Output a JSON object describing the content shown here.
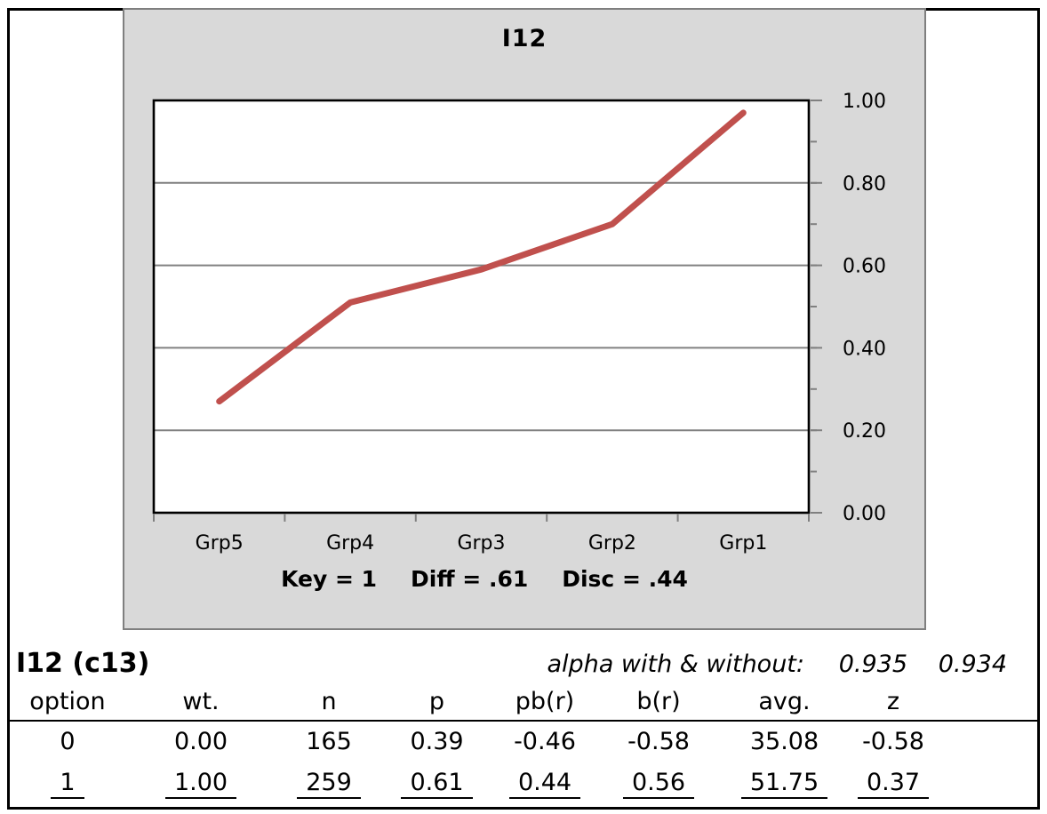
{
  "chart": {
    "title": "I12",
    "key_info": [
      "Key = 1",
      "Diff = .61",
      "Disc = .44"
    ]
  },
  "chart_data": {
    "type": "line",
    "title": "I12",
    "categories": [
      "Grp5",
      "Grp4",
      "Grp3",
      "Grp2",
      "Grp1"
    ],
    "values": [
      0.27,
      0.51,
      0.59,
      0.7,
      0.97
    ],
    "xlabel": "",
    "ylabel": "",
    "ylim": [
      0,
      1
    ],
    "y_axis_side": "right",
    "y_ticks": [
      {
        "v": 0.0,
        "label": "0.00"
      },
      {
        "v": 0.2,
        "label": "0.20"
      },
      {
        "v": 0.4,
        "label": "0.40"
      },
      {
        "v": 0.6,
        "label": "0.60"
      },
      {
        "v": 0.8,
        "label": "0.80"
      },
      {
        "v": 1.0,
        "label": "1.00"
      }
    ],
    "y_minor_ticks": [
      0.1,
      0.2,
      0.3,
      0.4,
      0.5,
      0.6,
      0.7,
      0.8,
      0.9
    ],
    "gridline_values": [
      0.2,
      0.4,
      0.6,
      0.8
    ],
    "grid": true,
    "legend_position": "none",
    "annotation": "Key = 1   Diff = .61   Disc = .44",
    "line_color": "#C0504D",
    "plot_bg": "#FFFFFF",
    "chart_bg": "#D9D9D9"
  },
  "item_summary": {
    "item_id": "I12 (c13)",
    "alpha_label": "alpha with & without:",
    "alpha_with": "0.935",
    "alpha_without": "0.934"
  },
  "stats_table": {
    "columns": [
      "option",
      "wt.",
      "n",
      "p",
      "pb(r)",
      "b(r)",
      "avg.",
      "z"
    ],
    "rows": [
      {
        "cells": [
          "0",
          "0.00",
          "165",
          "0.39",
          "-0.46",
          "-0.58",
          "35.08",
          "-0.58"
        ],
        "underlined": false
      },
      {
        "cells": [
          "1",
          "1.00",
          "259",
          "0.61",
          "0.44",
          "0.56",
          "51.75",
          "0.37"
        ],
        "underlined": true
      }
    ]
  },
  "colors": {
    "line": "#C0504D",
    "chart_bg": "#D9D9D9",
    "chart_border": "#7F7F7F",
    "gridline": "#808080",
    "tick": "#808080"
  }
}
